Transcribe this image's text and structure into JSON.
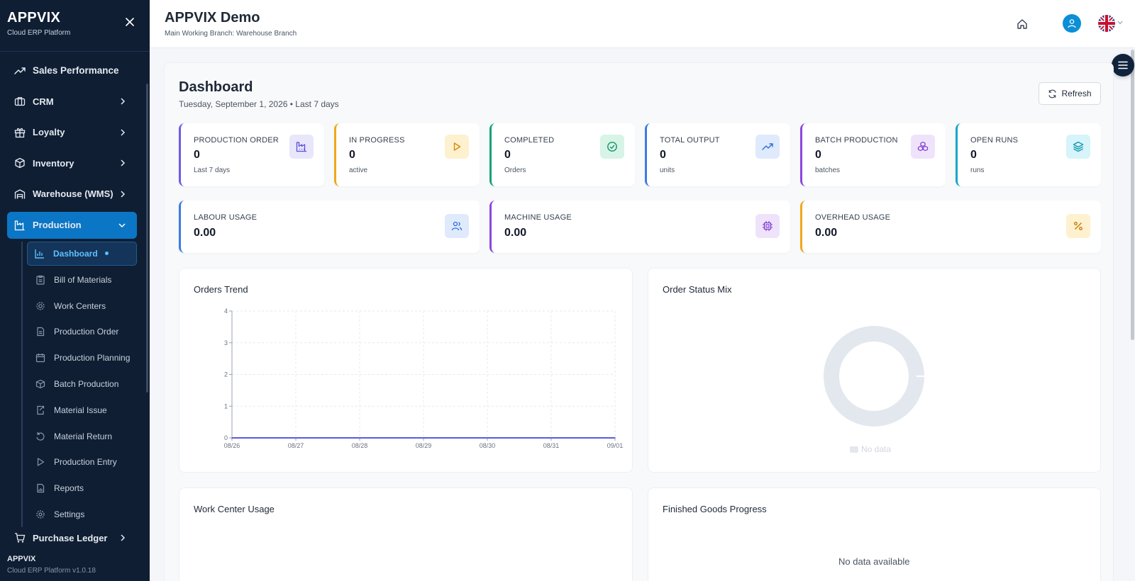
{
  "sidebar": {
    "brand_name": "APPVIX",
    "brand_sub": "Cloud ERP Platform",
    "items": [
      {
        "label": "Sales Performance",
        "icon": "trend-up-icon"
      },
      {
        "label": "CRM",
        "icon": "briefcase-icon"
      },
      {
        "label": "Loyalty",
        "icon": "gift-icon"
      },
      {
        "label": "Inventory",
        "icon": "box-icon"
      },
      {
        "label": "Warehouse (WMS)",
        "icon": "warehouse-icon"
      },
      {
        "label": "Production",
        "icon": "factory-icon"
      },
      {
        "label": "Purchase Ledger",
        "icon": "cart-icon"
      }
    ],
    "production_sub": [
      {
        "label": "Dashboard",
        "icon": "bar-chart-icon"
      },
      {
        "label": "Bill of Materials",
        "icon": "clipboard-icon"
      },
      {
        "label": "Work Centers",
        "icon": "gear-icon"
      },
      {
        "label": "Production Order",
        "icon": "document-icon"
      },
      {
        "label": "Production Planning",
        "icon": "calendar-icon"
      },
      {
        "label": "Batch Production",
        "icon": "box-icon"
      },
      {
        "label": "Material Issue",
        "icon": "export-icon"
      },
      {
        "label": "Material Return",
        "icon": "undo-icon"
      },
      {
        "label": "Production Entry",
        "icon": "play-icon"
      },
      {
        "label": "Reports",
        "icon": "report-icon"
      },
      {
        "label": "Settings",
        "icon": "settings-icon"
      }
    ],
    "footer_name": "APPVIX",
    "footer_version": "Cloud ERP Platform v1.0.18"
  },
  "header": {
    "title": "APPVIX Demo",
    "subtitle": "Main Working Branch: Warehouse Branch"
  },
  "dashboard": {
    "title": "Dashboard",
    "subtitle": "Tuesday, September 1, 2026 • Last 7 days",
    "refresh_label": "Refresh"
  },
  "stats": [
    {
      "label": "PRODUCTION ORDER",
      "value": "0",
      "caption": "Last 7 days",
      "color": "#6d5ce8",
      "icon": "factory-icon"
    },
    {
      "label": "IN PROGRESS",
      "value": "0",
      "caption": "active",
      "color": "#f0a81c",
      "icon": "play-icon"
    },
    {
      "label": "COMPLETED",
      "value": "0",
      "caption": "Orders",
      "color": "#16a37a",
      "icon": "check-circle-icon"
    },
    {
      "label": "TOTAL OUTPUT",
      "value": "0",
      "caption": "units",
      "color": "#3b7be6",
      "icon": "trend-up-icon"
    },
    {
      "label": "BATCH PRODUCTION",
      "value": "0",
      "caption": "batches",
      "color": "#8b47e0",
      "icon": "boxes-icon"
    },
    {
      "label": "OPEN RUNS",
      "value": "0",
      "caption": "runs",
      "color": "#14a8c7",
      "icon": "layers-icon"
    }
  ],
  "usage": [
    {
      "label": "LABOUR USAGE",
      "value": "0.00",
      "color": "#3b7be6",
      "icon": "users-icon"
    },
    {
      "label": "MACHINE USAGE",
      "value": "0.00",
      "color": "#8b47e0",
      "icon": "cpu-icon"
    },
    {
      "label": "OVERHEAD USAGE",
      "value": "0.00",
      "color": "#f0a81c",
      "icon": "percent-icon"
    }
  ],
  "charts": {
    "orders_trend_title": "Orders Trend",
    "status_mix_title": "Order Status Mix",
    "status_mix_nodata": "No data",
    "work_center_title": "Work Center Usage",
    "finished_goods_title": "Finished Goods Progress",
    "finished_goods_nodata": "No data available"
  },
  "chart_data": {
    "type": "line",
    "categories": [
      "08/26",
      "08/27",
      "08/28",
      "08/29",
      "08/30",
      "08/31",
      "09/01"
    ],
    "series": [
      {
        "values": [
          0,
          0,
          0,
          0,
          0,
          0,
          0
        ]
      }
    ],
    "yticks": [
      "0",
      "1",
      "2",
      "3",
      "4"
    ],
    "ylim": [
      0,
      4
    ],
    "grid": true,
    "line_color": "#5b5be0"
  }
}
